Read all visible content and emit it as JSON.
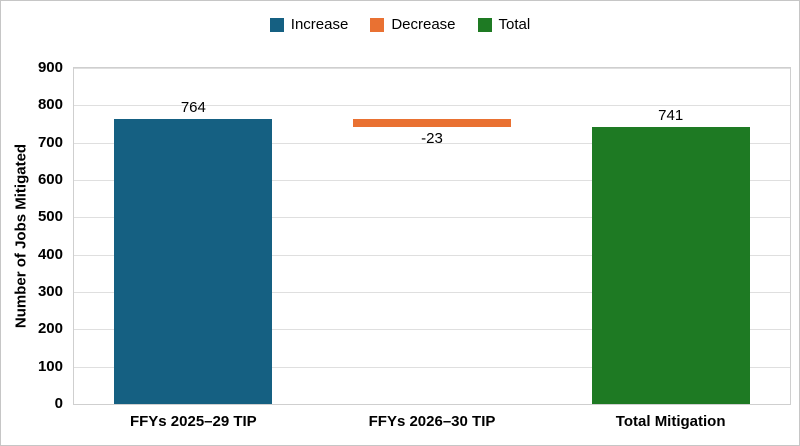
{
  "figure": {
    "background": "#FFFFFF",
    "border_color": "#C6C6C6"
  },
  "legend": {
    "items": [
      {
        "label": "Increase",
        "color": "#156082"
      },
      {
        "label": "Decrease",
        "color": "#E97132"
      },
      {
        "label": "Total",
        "color": "#1E7A23"
      }
    ]
  },
  "chart_data": {
    "type": "bar",
    "subtype": "waterfall",
    "ylabel": "Number of Jobs Mitigated",
    "xlabel": "",
    "ylim": [
      0,
      900
    ],
    "ytick_step": 100,
    "yticks": [
      0,
      100,
      200,
      300,
      400,
      500,
      600,
      700,
      800,
      900
    ],
    "grid": "horizontal",
    "gridline_color": "#DFDFDF",
    "plot_border_color": "#CFCFCF",
    "legend_position": "top-center",
    "categories": [
      "FFYs 2025–29 TIP",
      "FFYs 2026–30 TIP",
      "Total Mitigation"
    ],
    "bars": [
      {
        "category": "FFYs 2025–29 TIP",
        "series": "Increase",
        "value": 764,
        "base": 0,
        "top": 764,
        "label": "764",
        "label_position": "above",
        "color": "#156082"
      },
      {
        "category": "FFYs 2026–30 TIP",
        "series": "Decrease",
        "value": -23,
        "base": 741,
        "top": 764,
        "label": "-23",
        "label_position": "below",
        "color": "#E97132"
      },
      {
        "category": "Total Mitigation",
        "series": "Total",
        "value": 741,
        "base": 0,
        "top": 741,
        "label": "741",
        "label_position": "above",
        "color": "#1E7A23"
      }
    ]
  }
}
